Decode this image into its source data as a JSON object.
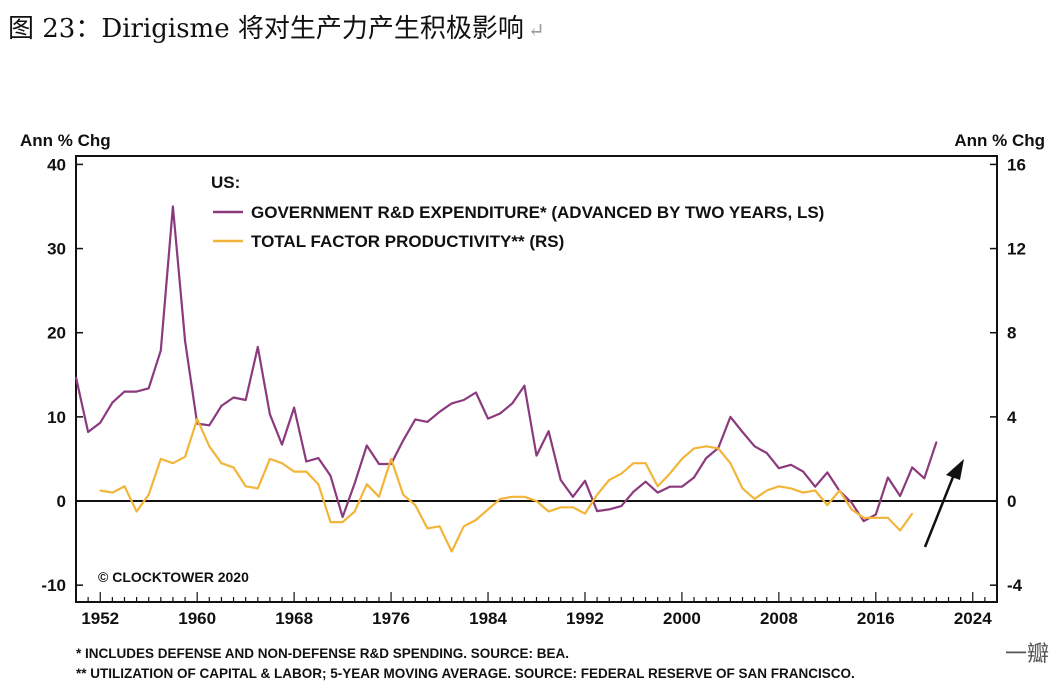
{
  "document": {
    "title": "图 23：Dirigisme 将对生产力产生积极影响",
    "return_mark": "↵",
    "watermark": "一瓣"
  },
  "chart_data": {
    "type": "line",
    "axis_title_left": "Ann % Chg",
    "axis_title_right": "Ann % Chg",
    "legend_heading": "US:",
    "copyright": "© CLOCKTOWER 2020",
    "x_range": [
      1950,
      2026
    ],
    "x_ticks": [
      "1952",
      "1960",
      "1968",
      "1976",
      "1984",
      "1992",
      "2000",
      "2008",
      "2016",
      "2024"
    ],
    "x_tick_values": [
      1952,
      1960,
      1968,
      1976,
      1984,
      1992,
      2000,
      2008,
      2016,
      2024
    ],
    "left_axis": {
      "range": [
        -12,
        41
      ],
      "ticks": [
        "40",
        "30",
        "20",
        "10",
        "0",
        "-10"
      ],
      "tick_values": [
        40,
        30,
        20,
        10,
        0,
        -10
      ]
    },
    "right_axis": {
      "range": [
        -4.8,
        16.4
      ],
      "ticks": [
        "16",
        "12",
        "8",
        "4",
        "0",
        "-4"
      ],
      "tick_values": [
        16,
        12,
        8,
        4,
        0,
        -4
      ]
    },
    "series": [
      {
        "name": "GOVERNMENT R&D EXPENDITURE* (ADVANCED BY TWO YEARS, LS)",
        "axis": "left",
        "color": "#8b3a7e",
        "x": [
          1950,
          1951,
          1952,
          1953,
          1954,
          1955,
          1956,
          1957,
          1958,
          1959,
          1960,
          1961,
          1962,
          1963,
          1964,
          1965,
          1966,
          1967,
          1968,
          1969,
          1970,
          1971,
          1972,
          1973,
          1974,
          1975,
          1976,
          1977,
          1978,
          1979,
          1980,
          1981,
          1982,
          1983,
          1984,
          1985,
          1986,
          1987,
          1988,
          1989,
          1990,
          1991,
          1992,
          1993,
          1994,
          1995,
          1996,
          1997,
          1998,
          1999,
          2000,
          2001,
          2002,
          2003,
          2004,
          2005,
          2006,
          2007,
          2008,
          2009,
          2010,
          2011,
          2012,
          2013,
          2014,
          2015,
          2016,
          2017,
          2018,
          2019,
          2020,
          2021
        ],
        "values": [
          14.7,
          8.2,
          9.3,
          11.7,
          13.0,
          13.0,
          13.4,
          17.9,
          35.0,
          19.0,
          9.2,
          9.0,
          11.3,
          12.3,
          12.0,
          18.3,
          10.3,
          6.7,
          11.1,
          4.7,
          5.1,
          3.0,
          -1.9,
          2.1,
          6.6,
          4.4,
          4.4,
          7.2,
          9.7,
          9.4,
          10.6,
          11.6,
          12.0,
          12.9,
          9.8,
          10.4,
          11.6,
          13.7,
          5.4,
          8.3,
          2.5,
          0.5,
          2.4,
          -1.2,
          -1.0,
          -0.6,
          1.1,
          2.3,
          1.0,
          1.7,
          1.7,
          2.8,
          5.1,
          6.3,
          10.0,
          8.2,
          6.5,
          5.7,
          3.9,
          4.3,
          3.5,
          1.7,
          3.4,
          1.2,
          -0.2,
          -2.4,
          -1.6,
          2.8,
          0.6,
          4.0,
          2.7,
          7.0
        ]
      },
      {
        "name": "TOTAL FACTOR PRODUCTIVITY** (RS)",
        "axis": "right",
        "color": "#f2b53a",
        "x": [
          1952,
          1953,
          1954,
          1955,
          1956,
          1957,
          1958,
          1959,
          1960,
          1961,
          1962,
          1963,
          1964,
          1965,
          1966,
          1967,
          1968,
          1969,
          1970,
          1971,
          1972,
          1973,
          1974,
          1975,
          1976,
          1977,
          1978,
          1979,
          1980,
          1981,
          1982,
          1983,
          1984,
          1985,
          1986,
          1987,
          1988,
          1989,
          1990,
          1991,
          1992,
          1993,
          1994,
          1995,
          1996,
          1997,
          1998,
          1999,
          2000,
          2001,
          2002,
          2003,
          2004,
          2005,
          2006,
          2007,
          2008,
          2009,
          2010,
          2011,
          2012,
          2013,
          2014,
          2015,
          2016,
          2017,
          2018,
          2019
        ],
        "values": [
          0.5,
          0.4,
          0.7,
          -0.5,
          0.3,
          2.0,
          1.8,
          2.1,
          3.9,
          2.6,
          1.8,
          1.6,
          0.7,
          0.6,
          2.0,
          1.8,
          1.4,
          1.4,
          0.8,
          -1.0,
          -1.0,
          -0.5,
          0.8,
          0.2,
          2.0,
          0.3,
          -0.2,
          -1.3,
          -1.2,
          -2.4,
          -1.2,
          -0.9,
          -0.4,
          0.1,
          0.2,
          0.2,
          0.0,
          -0.5,
          -0.3,
          -0.3,
          -0.6,
          0.3,
          1.0,
          1.3,
          1.8,
          1.8,
          0.7,
          1.3,
          2.0,
          2.5,
          2.6,
          2.5,
          1.8,
          0.6,
          0.1,
          0.5,
          0.7,
          0.6,
          0.4,
          0.5,
          -0.2,
          0.5,
          -0.4,
          -0.8,
          -0.8,
          -0.8,
          -1.4,
          -0.6
        ]
      }
    ],
    "annotation": "upward arrow"
  },
  "footnotes": [
    "*  INCLUDES DEFENSE AND NON-DEFENSE R&D SPENDING. SOURCE: BEA.",
    "** UTILIZATION OF CAPITAL & LABOR; 5-YEAR MOVING AVERAGE. SOURCE: FEDERAL RESERVE OF SAN FRANCISCO."
  ]
}
